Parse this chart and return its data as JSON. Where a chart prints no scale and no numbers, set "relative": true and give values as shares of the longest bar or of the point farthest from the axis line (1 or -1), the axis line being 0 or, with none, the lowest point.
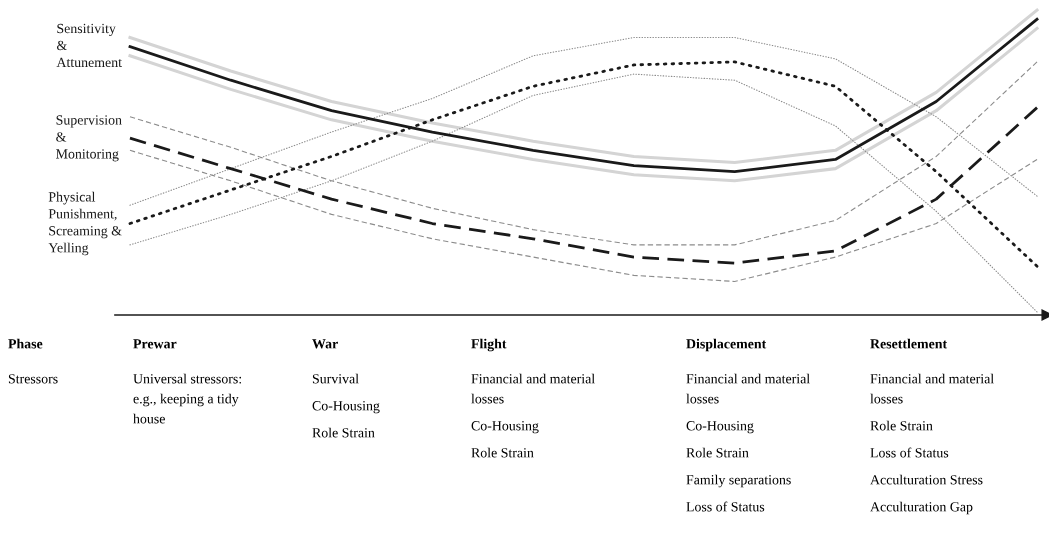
{
  "chart_data": {
    "type": "line",
    "relative": true,
    "legend": false,
    "categories": [
      null,
      null,
      null,
      null,
      null,
      null,
      null,
      null,
      null,
      null
    ],
    "series": [
      {
        "color": "#d4d4d4",
        "line_style": "solid",
        "values": [
          0.91,
          0.8,
          0.7,
          0.63,
          0.57,
          0.52,
          0.5,
          0.54,
          0.73,
          1.0
        ]
      },
      {
        "color": "#d4d4d4",
        "line_style": "solid",
        "values": [
          0.85,
          0.74,
          0.64,
          0.57,
          0.51,
          0.46,
          0.44,
          0.48,
          0.67,
          0.94
        ]
      },
      {
        "color": "#8c8c8c",
        "line_style": "dashed",
        "values": [
          0.65,
          0.55,
          0.44,
          0.35,
          0.28,
          0.23,
          0.23,
          0.31,
          0.52,
          0.83
        ]
      },
      {
        "color": "#8c8c8c",
        "line_style": "dashed",
        "values": [
          0.54,
          0.44,
          0.33,
          0.25,
          0.19,
          0.13,
          0.11,
          0.19,
          0.3,
          0.51
        ]
      },
      {
        "color": "#8c8c8c",
        "line_style": "dotted",
        "values": [
          0.36,
          0.48,
          0.6,
          0.71,
          0.85,
          0.91,
          0.91,
          0.84,
          0.65,
          0.39
        ]
      },
      {
        "color": "#8c8c8c",
        "line_style": "dotted",
        "values": [
          0.23,
          0.33,
          0.44,
          0.57,
          0.72,
          0.79,
          0.77,
          0.62,
          0.34,
          0.01
        ]
      },
      {
        "name": "Sensitivity\n&\nAttunement",
        "color": "#1a1a1a",
        "line_style": "solid",
        "values": [
          0.88,
          0.77,
          0.67,
          0.6,
          0.54,
          0.49,
          0.47,
          0.51,
          0.7,
          0.97
        ]
      },
      {
        "name": "Supervision\n&\nMonitoring",
        "color": "#1a1a1a",
        "line_style": "dashed",
        "values": [
          0.58,
          0.48,
          0.38,
          0.3,
          0.25,
          0.19,
          0.17,
          0.21,
          0.38,
          0.68
        ]
      },
      {
        "name": "Physical\nPunishment,\nScreaming &\nYelling",
        "color": "#1a1a1a",
        "line_style": "dotted",
        "values": [
          0.3,
          0.41,
          0.52,
          0.64,
          0.75,
          0.82,
          0.83,
          0.75,
          0.47,
          0.16
        ]
      }
    ],
    "annotations": [
      "Phase\nStressors",
      "Prewar\nUniversal stressors:\ne.g., keeping a tidy\nhouse",
      "War\nSurvival\n\nCo-Housing\n\nRole Strain",
      "Flight\nFinancial and material\nlosses\n\nCo-Housing\n\nRole Strain",
      "Displacement\nFinancial and material\nlosses\n\nCo-Housing\n\nRole Strain\n\nFamily separations\n\nLoss of Status",
      "Resettlement\nFinancial and material\nlosses\n\nRole Strain\n\nLoss of Status\n\nAcculturation Stress\n\nAcculturation Gap"
    ]
  }
}
